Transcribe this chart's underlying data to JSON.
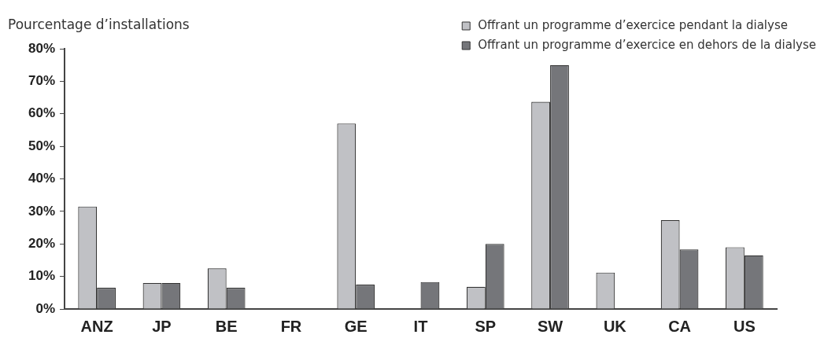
{
  "chart_data": {
    "type": "bar",
    "ylabel": "Pourcentage d’installations",
    "categories": [
      "ANZ",
      "JP",
      "BE",
      "FR",
      "GE",
      "IT",
      "SP",
      "SW",
      "UK",
      "CA",
      "US"
    ],
    "series": [
      {
        "name": "Offrant un programme d’exercice pendant la dialyse",
        "color": "#c0c1c5",
        "values": [
          31.5,
          8,
          12.5,
          0,
          57,
          0,
          6.8,
          63.7,
          11.2,
          27.3,
          19
        ]
      },
      {
        "name": "Offrant un programme d’exercice en dehors de la dialyse",
        "color": "#75767a",
        "values": [
          6.5,
          8,
          6.5,
          0,
          7.5,
          8.3,
          20,
          75,
          0,
          18.3,
          16.5
        ]
      }
    ],
    "ylim": [
      0,
      80
    ],
    "yticks": [
      {
        "value": 0,
        "label": "0%"
      },
      {
        "value": 10,
        "label": "10%"
      },
      {
        "value": 20,
        "label": "20%"
      },
      {
        "value": 30,
        "label": "30%"
      },
      {
        "value": 40,
        "label": "40%"
      },
      {
        "value": 50,
        "label": "50%"
      },
      {
        "value": 60,
        "label": "60%"
      },
      {
        "value": 70,
        "label": "70%"
      },
      {
        "value": 80,
        "label": "80%"
      }
    ],
    "grid": false,
    "legend": "top right"
  }
}
